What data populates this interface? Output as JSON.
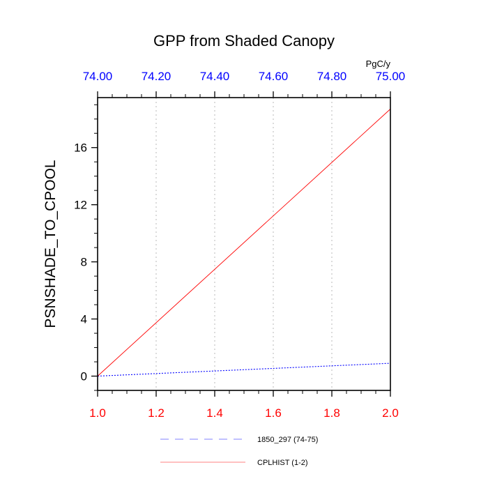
{
  "chart_data": {
    "type": "line",
    "title": "GPP from Shaded Canopy",
    "ylabel": "PSNSHADE_TO_CPOOL",
    "top_axis_units": "PgC/y",
    "ylim": [
      -1,
      19.5
    ],
    "yticks": [
      0,
      4,
      8,
      12,
      16
    ],
    "yticks_display": [
      "0",
      "4",
      "8",
      "12",
      "16"
    ],
    "grid": "vertical dotted lines at top-axis ticks",
    "legend_position": "bottom-center",
    "bottom_axis": {
      "color": "#ff0000",
      "range": [
        1.0,
        2.0
      ],
      "ticks": [
        1.0,
        1.2,
        1.4,
        1.6,
        1.8,
        2.0
      ],
      "ticks_display": [
        "1.0",
        "1.2",
        "1.4",
        "1.6",
        "1.8",
        "2.0"
      ]
    },
    "top_axis": {
      "color": "#0000ff",
      "range": [
        74.0,
        75.0
      ],
      "ticks": [
        74.0,
        74.2,
        74.4,
        74.6,
        74.8,
        75.0
      ],
      "ticks_display": [
        "74.00",
        "74.20",
        "74.40",
        "74.60",
        "74.80",
        "75.00"
      ]
    },
    "series": [
      {
        "name": "1850_297 (74-75)",
        "axis": "top",
        "color": "#0000ff",
        "dash": "dashed",
        "x": [
          74.0,
          75.0
        ],
        "y": [
          0.0,
          0.9
        ]
      },
      {
        "name": "CPLHIST (1-2)",
        "axis": "bottom",
        "color": "#ff0000",
        "dash": "solid",
        "x": [
          1.0,
          2.0
        ],
        "y": [
          0.0,
          18.7
        ]
      }
    ]
  }
}
